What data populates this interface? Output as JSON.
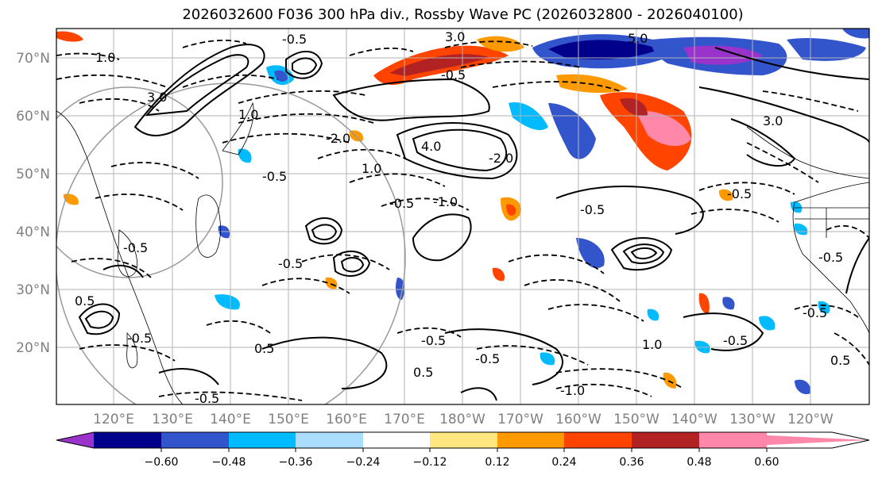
{
  "title": "2026032600 F036 300 hPa div., Rossby Wave PC (2026032800 - 2026040100)",
  "map": {
    "lat_labels": [
      "70°N",
      "60°N",
      "50°N",
      "40°N",
      "30°N",
      "20°N"
    ],
    "lon_labels": [
      "120°E",
      "130°E",
      "140°E",
      "150°E",
      "160°E",
      "170°E",
      "180°W",
      "170°W",
      "160°W",
      "150°W",
      "140°W",
      "130°W",
      "120°W"
    ],
    "contour_labels": [
      "3.0",
      "5.0",
      "1.0",
      "-0.5",
      "-0.5",
      "-2.0",
      "4.0",
      "-2.0",
      "1.0",
      "1.0",
      "-0.5",
      "-0.5",
      "-1.0",
      "3.0",
      "-0.5",
      "-0.5",
      "0.5",
      "-0.5",
      "-0.5",
      "3.0",
      "-0.5",
      "-0.5",
      "1.0",
      "-0.5",
      "-1.0",
      "-0.5",
      "-0.5",
      "0.5",
      "0.5",
      "-0.5",
      "-0.5",
      "0.5"
    ]
  },
  "colorbar": {
    "ticks": [
      "−0.60",
      "−0.48",
      "−0.36",
      "−0.24",
      "−0.12",
      "0.12",
      "0.24",
      "0.36",
      "0.48",
      "0.60"
    ],
    "colors": [
      "#9933cc",
      "#00008b",
      "#3355cc",
      "#00bbff",
      "#aaddff",
      "#ffffff",
      "#ffe680",
      "#ff9900",
      "#ff4400",
      "#b22222",
      "#ff88aa"
    ]
  }
}
